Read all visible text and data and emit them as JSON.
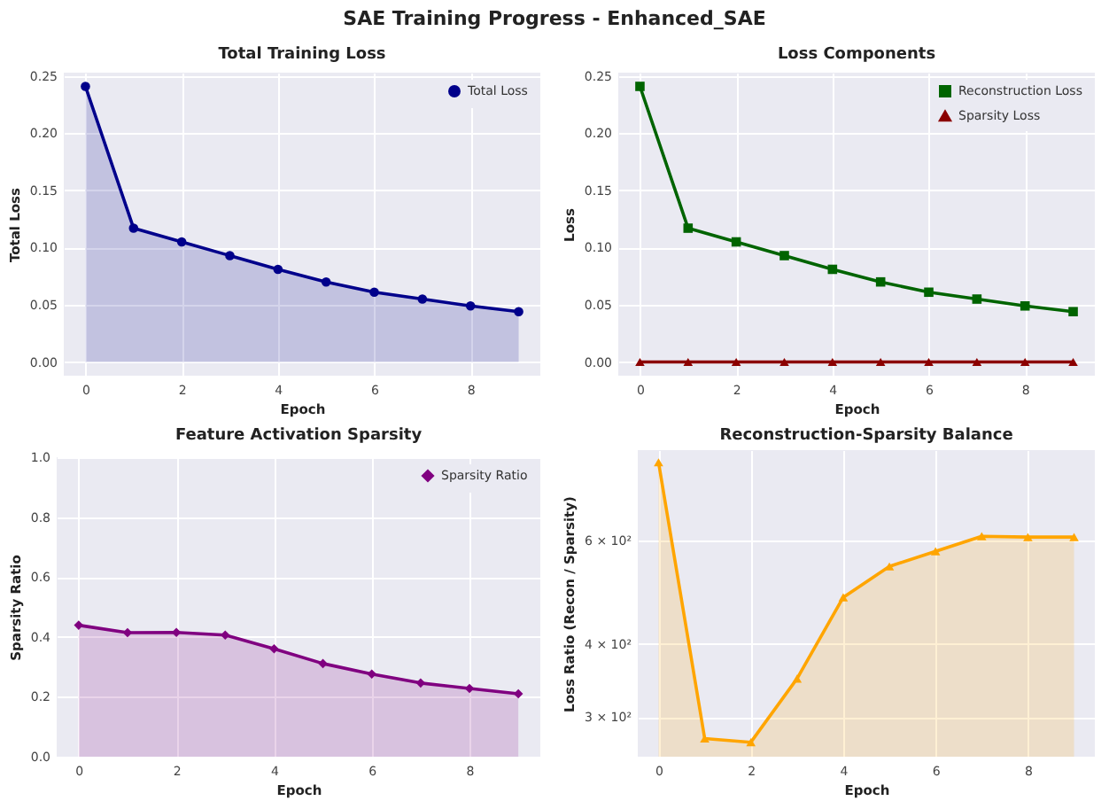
{
  "chart_data": [
    {
      "type": "other",
      "title": "SAE Training Progress - Enhanced_SAE"
    },
    {
      "type": "area",
      "title": "Total Training Loss",
      "xlabel": "Epoch",
      "ylabel": "Total Loss",
      "x": [
        0,
        1,
        2,
        3,
        4,
        5,
        6,
        7,
        8,
        9
      ],
      "series": [
        {
          "name": "Total Loss",
          "color": "#00008b",
          "values": [
            0.241,
            0.117,
            0.105,
            0.093,
            0.081,
            0.07,
            0.061,
            0.055,
            0.049,
            0.044
          ]
        }
      ],
      "xlim": [
        -0.45,
        9.45
      ],
      "xticks": [
        0,
        2,
        4,
        6,
        8
      ],
      "ylim": [
        -0.012,
        0.253
      ],
      "yticks": [
        {
          "value": 0,
          "label": "0.00"
        },
        {
          "value": 0.05,
          "label": "0.05"
        },
        {
          "value": 0.1,
          "label": "0.10"
        },
        {
          "value": 0.15,
          "label": "0.15"
        },
        {
          "value": 0.2,
          "label": "0.20"
        },
        {
          "value": 0.25,
          "label": "0.25"
        }
      ],
      "grid": true,
      "legend": "top right",
      "marker": "circle"
    },
    {
      "type": "line",
      "title": "Loss Components",
      "xlabel": "Epoch",
      "ylabel": "Loss",
      "x": [
        0,
        1,
        2,
        3,
        4,
        5,
        6,
        7,
        8,
        9
      ],
      "series": [
        {
          "name": "Reconstruction Loss",
          "color": "#006400",
          "marker": "square",
          "values": [
            0.241,
            0.117,
            0.105,
            0.093,
            0.081,
            0.07,
            0.061,
            0.055,
            0.049,
            0.044
          ]
        },
        {
          "name": "Sparsity Loss",
          "color": "#8b0000",
          "marker": "triangle",
          "values": [
            0,
            0,
            0,
            0,
            0,
            0,
            0,
            0,
            0,
            0
          ]
        }
      ],
      "xlim": [
        -0.45,
        9.45
      ],
      "xticks": [
        0,
        2,
        4,
        6,
        8
      ],
      "ylim": [
        -0.012,
        0.253
      ],
      "yticks": [
        {
          "value": 0,
          "label": "0.00"
        },
        {
          "value": 0.05,
          "label": "0.05"
        },
        {
          "value": 0.1,
          "label": "0.10"
        },
        {
          "value": 0.15,
          "label": "0.15"
        },
        {
          "value": 0.2,
          "label": "0.20"
        },
        {
          "value": 0.25,
          "label": "0.25"
        }
      ],
      "grid": true,
      "legend": "top right"
    },
    {
      "type": "area",
      "title": "Feature Activation Sparsity",
      "xlabel": "Epoch",
      "ylabel": "Sparsity Ratio",
      "x": [
        0,
        1,
        2,
        3,
        4,
        5,
        6,
        7,
        8,
        9
      ],
      "series": [
        {
          "name": "Sparsity Ratio",
          "color": "#800080",
          "values": [
            0.439,
            0.414,
            0.415,
            0.406,
            0.36,
            0.311,
            0.276,
            0.246,
            0.228,
            0.21
          ]
        }
      ],
      "xlim": [
        -0.45,
        9.45
      ],
      "xticks": [
        0,
        2,
        4,
        6,
        8
      ],
      "ylim": [
        0,
        1
      ],
      "yticks": [
        {
          "value": 0,
          "label": "0.0"
        },
        {
          "value": 0.2,
          "label": "0.2"
        },
        {
          "value": 0.4,
          "label": "0.4"
        },
        {
          "value": 0.6,
          "label": "0.6"
        },
        {
          "value": 0.8,
          "label": "0.8"
        },
        {
          "value": 1,
          "label": "1.0"
        }
      ],
      "grid": true,
      "legend": "top right",
      "marker": "diamond"
    },
    {
      "type": "area",
      "title": "Reconstruction-Sparsity Balance",
      "xlabel": "Epoch",
      "ylabel": "Loss Ratio (Recon / Sparsity)",
      "x": [
        0,
        1,
        2,
        3,
        4,
        5,
        6,
        7,
        8,
        9
      ],
      "series": [
        {
          "color": "#ffa500",
          "values": [
            815,
            276,
            272,
            349,
            480,
            542,
            575,
            610,
            608,
            608
          ]
        }
      ],
      "xlim": [
        -0.45,
        9.45
      ],
      "xticks": [
        0,
        2,
        4,
        6,
        8
      ],
      "ylim": [
        257,
        855
      ],
      "log": true,
      "yticks": [
        {
          "value": 300,
          "label": "3 × 10²"
        },
        {
          "value": 400,
          "label": "4 × 10²"
        },
        {
          "value": 600,
          "label": "6 × 10²"
        }
      ],
      "grid": true,
      "marker": "triangle"
    }
  ]
}
